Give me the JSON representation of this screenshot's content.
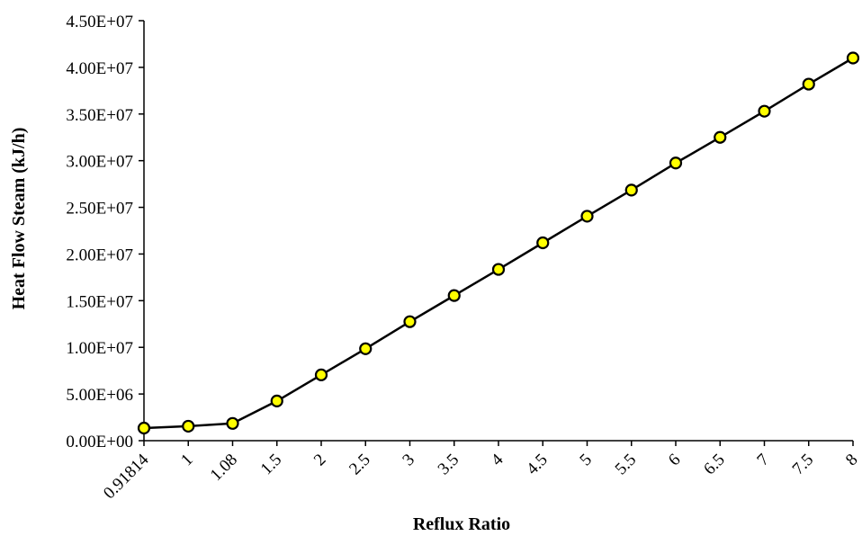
{
  "chart_data": {
    "type": "line",
    "title": "",
    "xlabel": "Reflux Ratio",
    "ylabel": "Heat Flow Steam (kJ/h)",
    "categories": [
      "0.91814",
      "1",
      "1.08",
      "1.5",
      "2",
      "2.5",
      "3",
      "3.5",
      "4",
      "4.5",
      "5",
      "5.5",
      "6",
      "6.5",
      "7",
      "7.5",
      "8"
    ],
    "y_ticks": [
      "0.00E+00",
      "5.00E+06",
      "1.00E+07",
      "1.50E+07",
      "2.00E+07",
      "2.50E+07",
      "3.00E+07",
      "3.50E+07",
      "4.00E+07",
      "4.50E+07"
    ],
    "ylim": [
      0,
      45000000
    ],
    "series": [
      {
        "values": [
          1350000,
          1550000,
          1850000,
          4250000,
          7050000,
          9850000,
          12750000,
          15550000,
          18350000,
          21200000,
          24050000,
          26850000,
          29750000,
          32500000,
          35300000,
          38200000,
          41000000
        ]
      }
    ],
    "grid": false,
    "legend": "none",
    "colors": {
      "line": "#000000",
      "marker_fill": "#ffff00",
      "marker_stroke": "#000000"
    }
  }
}
